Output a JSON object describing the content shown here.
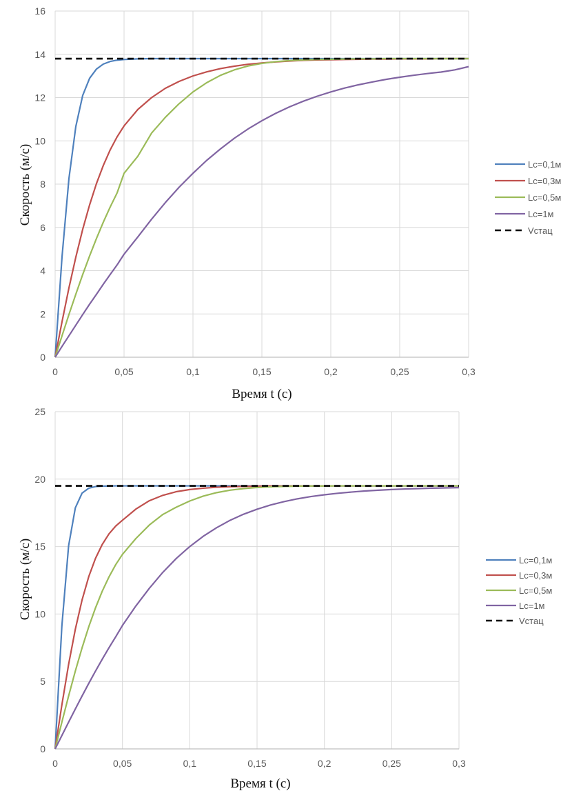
{
  "chart_data": [
    {
      "type": "line",
      "title": "",
      "xlabel": "Время t (с)",
      "ylabel": "Скорость (м/с)",
      "xlim": [
        0,
        0.3
      ],
      "ylim": [
        0,
        16
      ],
      "xticks": [
        0,
        0.05,
        0.1,
        0.15,
        0.2,
        0.25,
        0.3
      ],
      "xtick_labels": [
        "0",
        "0,05",
        "0,1",
        "0,15",
        "0,2",
        "0,25",
        "0,3"
      ],
      "yticks": [
        0,
        2,
        4,
        6,
        8,
        10,
        12,
        14,
        16
      ],
      "ytick_labels": [
        "0",
        "2",
        "4",
        "6",
        "8",
        "10",
        "12",
        "14",
        "16"
      ],
      "grid": true,
      "legend_position": "right",
      "x": [
        0,
        0.005,
        0.01,
        0.015,
        0.02,
        0.025,
        0.03,
        0.035,
        0.04,
        0.045,
        0.05,
        0.06,
        0.07,
        0.08,
        0.09,
        0.1,
        0.11,
        0.12,
        0.13,
        0.14,
        0.15,
        0.16,
        0.17,
        0.18,
        0.19,
        0.2,
        0.21,
        0.22,
        0.23,
        0.24,
        0.25,
        0.26,
        0.27,
        0.28,
        0.29,
        0.3
      ],
      "series": [
        {
          "name": "Lc=0,1м",
          "color": "#4f81bd",
          "style": "solid",
          "values": [
            0,
            4.64,
            8.25,
            10.66,
            12.1,
            12.89,
            13.32,
            13.55,
            13.67,
            13.73,
            13.76,
            13.79,
            13.8,
            13.8,
            13.8,
            13.8,
            13.8,
            13.8,
            13.8,
            13.8,
            13.8,
            13.8,
            13.8,
            13.8,
            13.8,
            13.8,
            13.8,
            13.8,
            13.8,
            13.8,
            13.8,
            13.8,
            13.8,
            13.8,
            13.8,
            13.8
          ]
        },
        {
          "name": "Lc=0,3м",
          "color": "#c0504d",
          "style": "solid",
          "values": [
            0,
            1.64,
            3.2,
            4.62,
            5.91,
            7.04,
            8.03,
            8.87,
            9.59,
            10.19,
            10.69,
            11.45,
            12.0,
            12.43,
            12.75,
            13.0,
            13.19,
            13.34,
            13.45,
            13.54,
            13.6,
            13.65,
            13.69,
            13.72,
            13.74,
            13.75,
            13.76,
            13.77,
            13.78,
            13.78,
            13.79,
            13.79,
            13.79,
            13.8,
            13.8,
            13.8
          ]
        },
        {
          "name": "Lc=0,5м",
          "color": "#9bbb59",
          "style": "solid",
          "values": [
            0,
            0.99,
            1.97,
            2.91,
            3.82,
            4.68,
            5.49,
            6.25,
            6.95,
            7.6,
            8.5,
            9.29,
            10.36,
            11.09,
            11.72,
            12.26,
            12.69,
            13.03,
            13.28,
            13.46,
            13.58,
            13.66,
            13.71,
            13.74,
            13.76,
            13.77,
            13.78,
            13.79,
            13.79,
            13.8,
            13.8,
            13.8,
            13.8,
            13.8,
            13.8,
            13.8
          ]
        },
        {
          "name": "Lc=1м",
          "color": "#8064a2",
          "style": "solid",
          "values": [
            0,
            0.5,
            0.99,
            1.48,
            1.97,
            2.45,
            2.91,
            3.38,
            3.83,
            4.27,
            4.76,
            5.56,
            6.38,
            7.15,
            7.86,
            8.5,
            9.1,
            9.63,
            10.12,
            10.55,
            10.93,
            11.27,
            11.57,
            11.83,
            12.06,
            12.26,
            12.44,
            12.59,
            12.72,
            12.84,
            12.94,
            13.03,
            13.11,
            13.18,
            13.28,
            13.43
          ]
        },
        {
          "name": "Vстац",
          "color": "#000000",
          "style": "dashed",
          "values": [
            13.8,
            13.8,
            13.8,
            13.8,
            13.8,
            13.8,
            13.8,
            13.8,
            13.8,
            13.8,
            13.8,
            13.8,
            13.8,
            13.8,
            13.8,
            13.8,
            13.8,
            13.8,
            13.8,
            13.8,
            13.8,
            13.8,
            13.8,
            13.8,
            13.8,
            13.8,
            13.8,
            13.8,
            13.8,
            13.8,
            13.8,
            13.8,
            13.8,
            13.8,
            13.8,
            13.8
          ]
        }
      ]
    },
    {
      "type": "line",
      "title": "",
      "xlabel": "Время t (с)",
      "ylabel": "Скорость (м/с)",
      "xlim": [
        0,
        0.3
      ],
      "ylim": [
        0,
        25
      ],
      "xticks": [
        0,
        0.05,
        0.1,
        0.15,
        0.2,
        0.25,
        0.3
      ],
      "xtick_labels": [
        "0",
        "0,05",
        "0,1",
        "0,15",
        "0,2",
        "0,25",
        "0,3"
      ],
      "yticks": [
        0,
        5,
        10,
        15,
        20,
        25
      ],
      "ytick_labels": [
        "0",
        "5",
        "10",
        "15",
        "20",
        "25"
      ],
      "grid": true,
      "legend_position": "right",
      "x": [
        0,
        0.005,
        0.01,
        0.015,
        0.02,
        0.025,
        0.03,
        0.035,
        0.04,
        0.045,
        0.05,
        0.06,
        0.07,
        0.08,
        0.09,
        0.1,
        0.11,
        0.12,
        0.13,
        0.14,
        0.15,
        0.16,
        0.17,
        0.18,
        0.19,
        0.2,
        0.21,
        0.22,
        0.23,
        0.24,
        0.25,
        0.26,
        0.27,
        0.28,
        0.29,
        0.3
      ],
      "series": [
        {
          "name": "Lc=0,1м",
          "color": "#4f81bd",
          "style": "solid",
          "values": [
            0,
            9.11,
            15.05,
            17.87,
            18.96,
            19.33,
            19.45,
            19.48,
            19.49,
            19.5,
            19.5,
            19.5,
            19.5,
            19.5,
            19.5,
            19.5,
            19.5,
            19.5,
            19.5,
            19.5,
            19.5,
            19.5,
            19.5,
            19.5,
            19.5,
            19.5,
            19.5,
            19.5,
            19.5,
            19.5,
            19.5,
            19.5,
            19.5,
            19.5,
            19.5,
            19.5
          ]
        },
        {
          "name": "Lc=0,3м",
          "color": "#c0504d",
          "style": "solid",
          "values": [
            0,
            3.26,
            6.26,
            8.87,
            11.04,
            12.78,
            14.13,
            15.16,
            15.94,
            16.52,
            16.95,
            17.78,
            18.4,
            18.8,
            19.07,
            19.23,
            19.33,
            19.4,
            19.44,
            19.46,
            19.48,
            19.49,
            19.49,
            19.5,
            19.5,
            19.5,
            19.5,
            19.5,
            19.5,
            19.5,
            19.5,
            19.5,
            19.5,
            19.5,
            19.5,
            19.5
          ]
        },
        {
          "name": "Lc=0,5м",
          "color": "#9bbb59",
          "style": "solid",
          "values": [
            0,
            1.98,
            3.92,
            5.77,
            7.49,
            9.06,
            10.46,
            11.69,
            12.75,
            13.66,
            14.42,
            15.6,
            16.6,
            17.38,
            17.92,
            18.38,
            18.74,
            19.0,
            19.18,
            19.3,
            19.38,
            19.43,
            19.46,
            19.48,
            19.49,
            19.49,
            19.5,
            19.5,
            19.5,
            19.5,
            19.5,
            19.5,
            19.5,
            19.5,
            19.5,
            19.5
          ]
        },
        {
          "name": "Lc=1м",
          "color": "#8064a2",
          "style": "solid",
          "values": [
            0,
            0.99,
            1.98,
            2.96,
            3.92,
            4.86,
            5.77,
            6.65,
            7.5,
            8.31,
            9.15,
            10.6,
            11.91,
            13.09,
            14.12,
            15.0,
            15.76,
            16.4,
            16.95,
            17.4,
            17.77,
            18.08,
            18.33,
            18.54,
            18.71,
            18.84,
            18.95,
            19.04,
            19.12,
            19.18,
            19.23,
            19.27,
            19.3,
            19.33,
            19.35,
            19.37
          ]
        },
        {
          "name": "Vстац",
          "color": "#000000",
          "style": "dashed",
          "values": [
            19.5,
            19.5,
            19.5,
            19.5,
            19.5,
            19.5,
            19.5,
            19.5,
            19.5,
            19.5,
            19.5,
            19.5,
            19.5,
            19.5,
            19.5,
            19.5,
            19.5,
            19.5,
            19.5,
            19.5,
            19.5,
            19.5,
            19.5,
            19.5,
            19.5,
            19.5,
            19.5,
            19.5,
            19.5,
            19.5,
            19.5,
            19.5,
            19.5,
            19.5,
            19.5,
            19.5
          ]
        }
      ]
    }
  ]
}
